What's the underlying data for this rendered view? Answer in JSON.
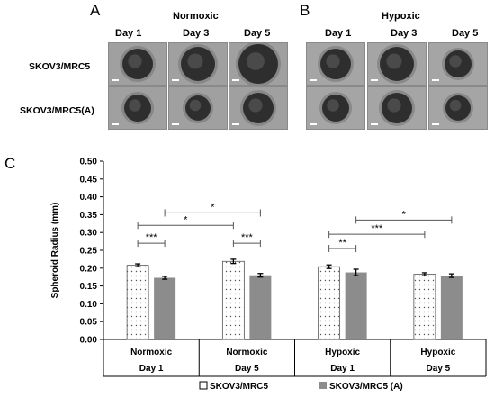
{
  "panel_a": {
    "letter": "A",
    "condition": "Normoxic",
    "days": [
      "Day 1",
      "Day 3",
      "Day 5"
    ],
    "rows": [
      "SKOV3/MRC5",
      "SKOV3/MRC5(A)"
    ]
  },
  "panel_b": {
    "letter": "B",
    "condition": "Hypoxic",
    "days": [
      "Day 1",
      "Day 3",
      "Day 5"
    ]
  },
  "panel_c": {
    "letter": "C"
  },
  "chart_data": {
    "type": "bar",
    "ylabel": "Spheroid Radius (mm)",
    "ylim": [
      0,
      0.5
    ],
    "yticks": [
      "0.00",
      "0.05",
      "0.10",
      "0.15",
      "0.20",
      "0.25",
      "0.30",
      "0.35",
      "0.40",
      "0.45",
      "0.50"
    ],
    "grid": false,
    "categories": [
      {
        "condition": "Normoxic",
        "day": "Day 1"
      },
      {
        "condition": "Normoxic",
        "day": "Day 5"
      },
      {
        "condition": "Hypoxic",
        "day": "Day 1"
      },
      {
        "condition": "Hypoxic",
        "day": "Day 5"
      }
    ],
    "series": [
      {
        "name": "SKOV3/MRC5",
        "values": [
          0.208,
          0.219,
          0.204,
          0.183
        ],
        "errors": [
          0.004,
          0.006,
          0.005,
          0.004
        ],
        "fill": "#ffffff",
        "pattern": "dotted"
      },
      {
        "name": "SKOV3/MRC5 (A)",
        "values": [
          0.173,
          0.18,
          0.188,
          0.179
        ],
        "errors": [
          0.004,
          0.005,
          0.009,
          0.005
        ],
        "fill": "#8c8c8c",
        "pattern": "solid"
      }
    ],
    "significance": [
      {
        "label": "***",
        "y": 0.27,
        "from": {
          "cat": 0,
          "series": 0
        },
        "to": {
          "cat": 0,
          "series": 1
        }
      },
      {
        "label": "***",
        "y": 0.27,
        "from": {
          "cat": 1,
          "series": 0
        },
        "to": {
          "cat": 1,
          "series": 1
        }
      },
      {
        "label": "*",
        "y": 0.32,
        "from": {
          "cat": 0,
          "series": 0
        },
        "to": {
          "cat": 1,
          "series": 0
        }
      },
      {
        "label": "*",
        "y": 0.355,
        "from": {
          "cat": 0,
          "series": 1
        },
        "to": {
          "cat": 1,
          "series": 1
        }
      },
      {
        "label": "**",
        "y": 0.255,
        "from": {
          "cat": 2,
          "series": 0
        },
        "to": {
          "cat": 2,
          "series": 1
        }
      },
      {
        "label": "***",
        "y": 0.295,
        "from": {
          "cat": 2,
          "series": 0
        },
        "to": {
          "cat": 3,
          "series": 0
        }
      },
      {
        "label": "*",
        "y": 0.335,
        "from": {
          "cat": 2,
          "series": 1
        },
        "to": {
          "cat": 3,
          "series": 1
        }
      }
    ],
    "legend_placement": "bottom"
  }
}
